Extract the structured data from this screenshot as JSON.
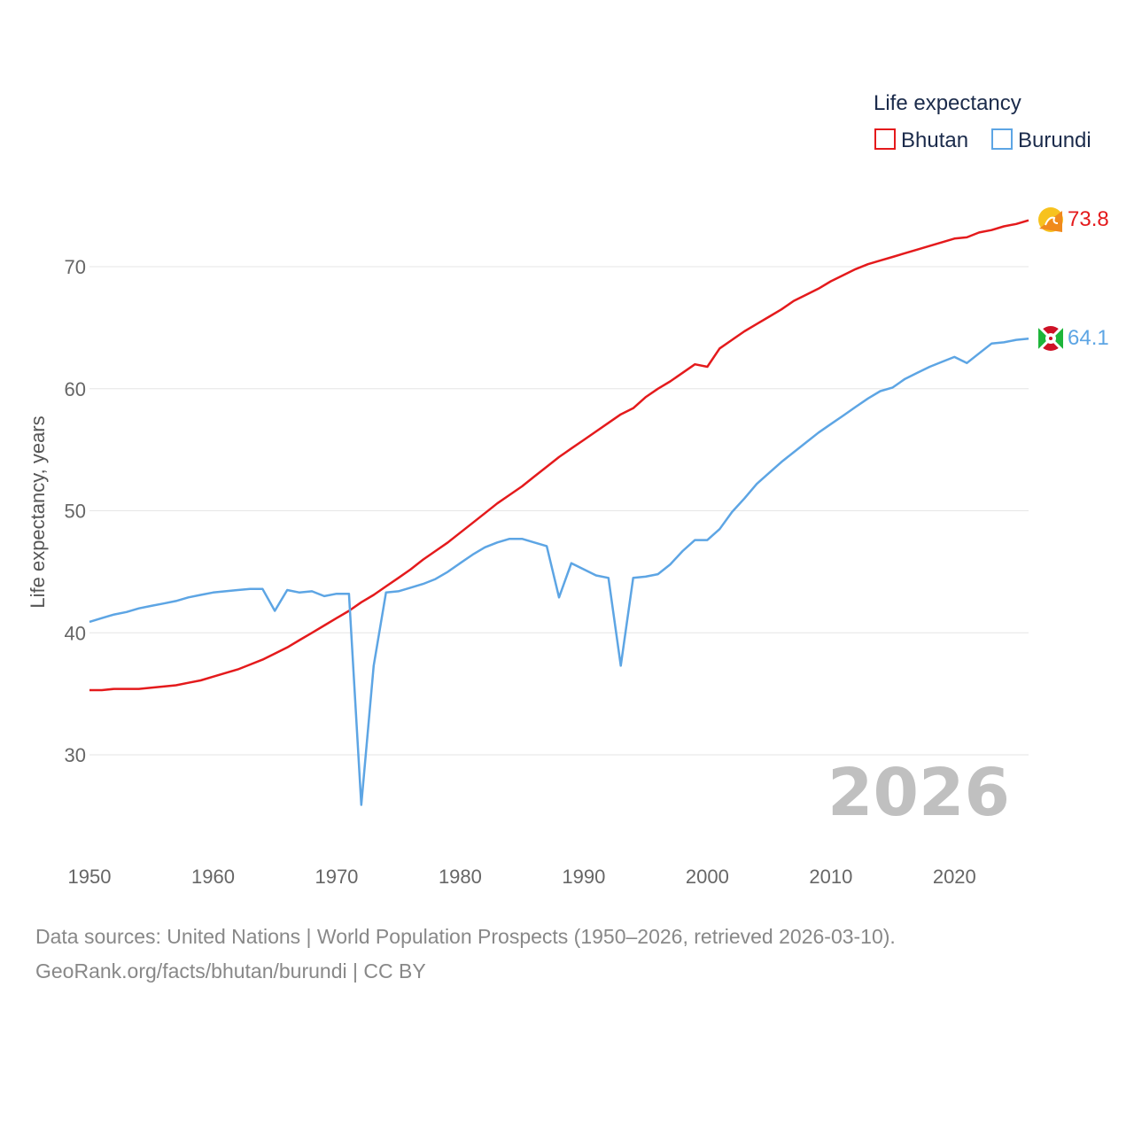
{
  "legend": {
    "title": "Life expectancy",
    "items": [
      {
        "label": "Bhutan",
        "color": "#e41a1c"
      },
      {
        "label": "Burundi",
        "color": "#5da5e4"
      }
    ]
  },
  "year_watermark": "2026",
  "footer": {
    "line1": "Data sources: United Nations | World Population Prospects (1950–2026, retrieved 2026-03-10).",
    "line2": "GeoRank.org/facts/bhutan/burundi | CC BY"
  },
  "chart_data": {
    "type": "line",
    "title": "Life expectancy",
    "xlabel": "",
    "ylabel": "Life expectancy, years",
    "xlim": [
      1950,
      2026
    ],
    "ylim": [
      24,
      76
    ],
    "xticks": [
      1950,
      1960,
      1970,
      1980,
      1990,
      2000,
      2010,
      2020
    ],
    "yticks": [
      30,
      40,
      50,
      60,
      70
    ],
    "grid": true,
    "legend_position": "top-right",
    "series": [
      {
        "name": "Bhutan",
        "color": "#e41a1c",
        "end_label": "73.8",
        "x": [
          1950,
          1951,
          1952,
          1953,
          1954,
          1955,
          1956,
          1957,
          1958,
          1959,
          1960,
          1961,
          1962,
          1963,
          1964,
          1965,
          1966,
          1967,
          1968,
          1969,
          1970,
          1971,
          1972,
          1973,
          1974,
          1975,
          1976,
          1977,
          1978,
          1979,
          1980,
          1981,
          1982,
          1983,
          1984,
          1985,
          1986,
          1987,
          1988,
          1989,
          1990,
          1991,
          1992,
          1993,
          1994,
          1995,
          1996,
          1997,
          1998,
          1999,
          2000,
          2001,
          2002,
          2003,
          2004,
          2005,
          2006,
          2007,
          2008,
          2009,
          2010,
          2011,
          2012,
          2013,
          2014,
          2015,
          2016,
          2017,
          2018,
          2019,
          2020,
          2021,
          2022,
          2023,
          2024,
          2025,
          2026
        ],
        "y": [
          35.3,
          35.3,
          35.4,
          35.4,
          35.4,
          35.5,
          35.6,
          35.7,
          35.9,
          36.1,
          36.4,
          36.7,
          37.0,
          37.4,
          37.8,
          38.3,
          38.8,
          39.4,
          40.0,
          40.6,
          41.2,
          41.8,
          42.5,
          43.1,
          43.8,
          44.5,
          45.2,
          46.0,
          46.7,
          47.4,
          48.2,
          49.0,
          49.8,
          50.6,
          51.3,
          52.0,
          52.8,
          53.6,
          54.4,
          55.1,
          55.8,
          56.5,
          57.2,
          57.9,
          58.4,
          59.3,
          60.0,
          60.6,
          61.3,
          62.0,
          61.8,
          63.3,
          64.0,
          64.7,
          65.3,
          65.9,
          66.5,
          67.2,
          67.7,
          68.2,
          68.8,
          69.3,
          69.8,
          70.2,
          70.5,
          70.8,
          71.1,
          71.4,
          71.7,
          72.0,
          72.3,
          72.4,
          72.8,
          73.0,
          73.3,
          73.5,
          73.8
        ]
      },
      {
        "name": "Burundi",
        "color": "#5da5e4",
        "end_label": "64.1",
        "x": [
          1950,
          1951,
          1952,
          1953,
          1954,
          1955,
          1956,
          1957,
          1958,
          1959,
          1960,
          1961,
          1962,
          1963,
          1964,
          1965,
          1966,
          1967,
          1968,
          1969,
          1970,
          1971,
          1972,
          1973,
          1974,
          1975,
          1976,
          1977,
          1978,
          1979,
          1980,
          1981,
          1982,
          1983,
          1984,
          1985,
          1986,
          1987,
          1988,
          1989,
          1990,
          1991,
          1992,
          1993,
          1994,
          1995,
          1996,
          1997,
          1998,
          1999,
          2000,
          2001,
          2002,
          2003,
          2004,
          2005,
          2006,
          2007,
          2008,
          2009,
          2010,
          2011,
          2012,
          2013,
          2014,
          2015,
          2016,
          2017,
          2018,
          2019,
          2020,
          2021,
          2022,
          2023,
          2024,
          2025,
          2026
        ],
        "y": [
          40.9,
          41.2,
          41.5,
          41.7,
          42.0,
          42.2,
          42.4,
          42.6,
          42.9,
          43.1,
          43.3,
          43.4,
          43.5,
          43.6,
          43.6,
          41.8,
          43.5,
          43.3,
          43.4,
          43.0,
          43.2,
          43.2,
          25.9,
          37.3,
          43.3,
          43.4,
          43.7,
          44.0,
          44.4,
          45.0,
          45.7,
          46.4,
          47.0,
          47.4,
          47.7,
          47.7,
          47.4,
          47.1,
          42.9,
          45.7,
          45.2,
          44.7,
          44.5,
          37.3,
          44.5,
          44.6,
          44.8,
          45.6,
          46.7,
          47.6,
          47.6,
          48.5,
          49.9,
          51.0,
          52.2,
          53.1,
          54.0,
          54.8,
          55.6,
          56.4,
          57.1,
          57.8,
          58.5,
          59.2,
          59.8,
          60.1,
          60.8,
          61.3,
          61.8,
          62.2,
          62.6,
          62.1,
          62.9,
          63.7,
          63.8,
          64.0,
          64.1
        ]
      }
    ]
  }
}
